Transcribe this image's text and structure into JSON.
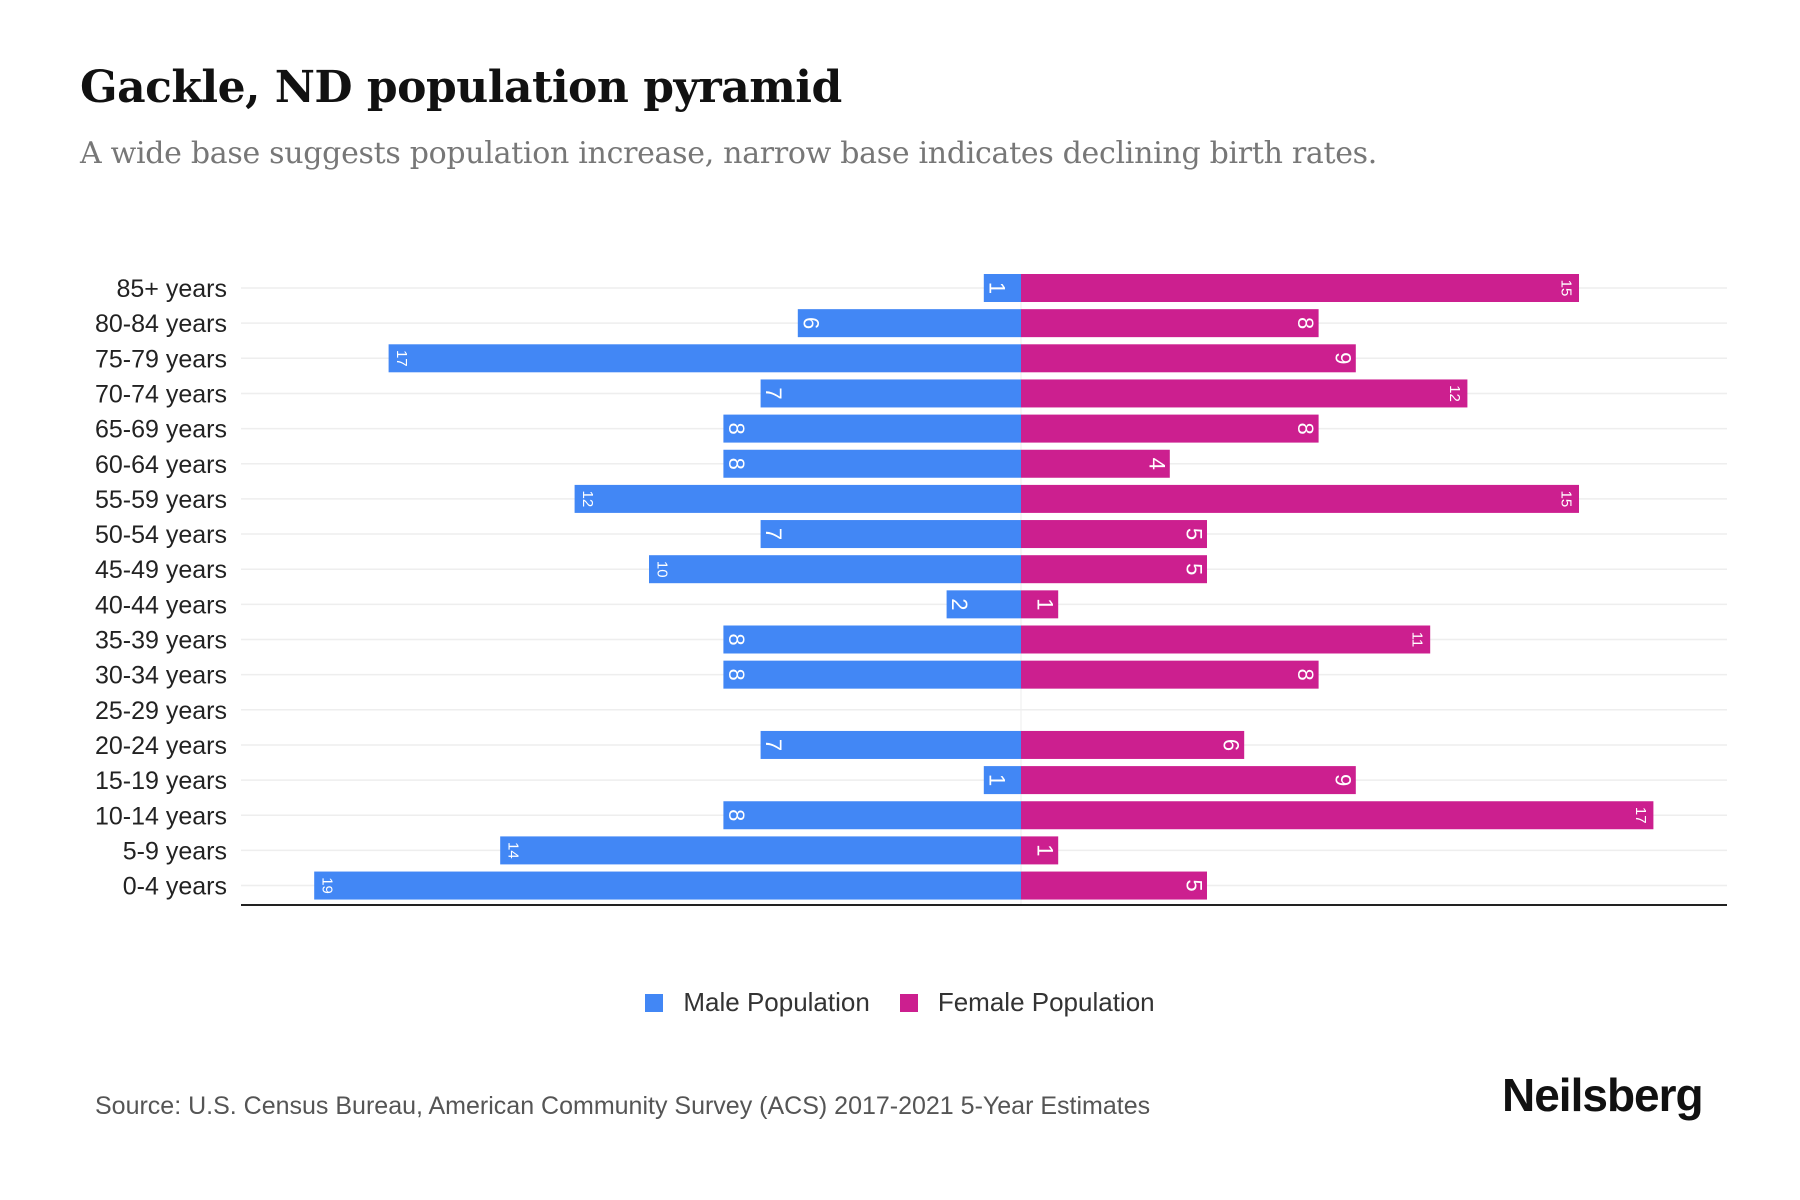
{
  "header": {
    "title": "Gackle, ND population pyramid",
    "subtitle": "A wide base suggests population increase, narrow base indicates declining birth rates."
  },
  "chart_data": {
    "type": "bar",
    "orientation": "horizontal-pyramid",
    "categories": [
      "85+ years",
      "80-84 years",
      "75-79 years",
      "70-74 years",
      "65-69 years",
      "60-64 years",
      "55-59 years",
      "50-54 years",
      "45-49 years",
      "40-44 years",
      "35-39 years",
      "30-34 years",
      "25-29 years",
      "20-24 years",
      "15-19 years",
      "10-14 years",
      "5-9 years",
      "0-4 years"
    ],
    "series": [
      {
        "name": "Male Population",
        "color": "#4287f5",
        "values": [
          1,
          6,
          17,
          7,
          8,
          8,
          12,
          7,
          10,
          2,
          8,
          8,
          0,
          7,
          1,
          8,
          14,
          19
        ]
      },
      {
        "name": "Female Population",
        "color": "#cc1f8f",
        "values": [
          15,
          8,
          9,
          12,
          8,
          4,
          15,
          5,
          5,
          1,
          11,
          8,
          0,
          6,
          9,
          17,
          1,
          5
        ]
      }
    ],
    "legend_position": "bottom-center",
    "grid": true
  },
  "footer": {
    "source": "Source: U.S. Census Bureau, American Community Survey (ACS) 2017-2021 5-Year Estimates",
    "logo": "Neilsberg"
  }
}
